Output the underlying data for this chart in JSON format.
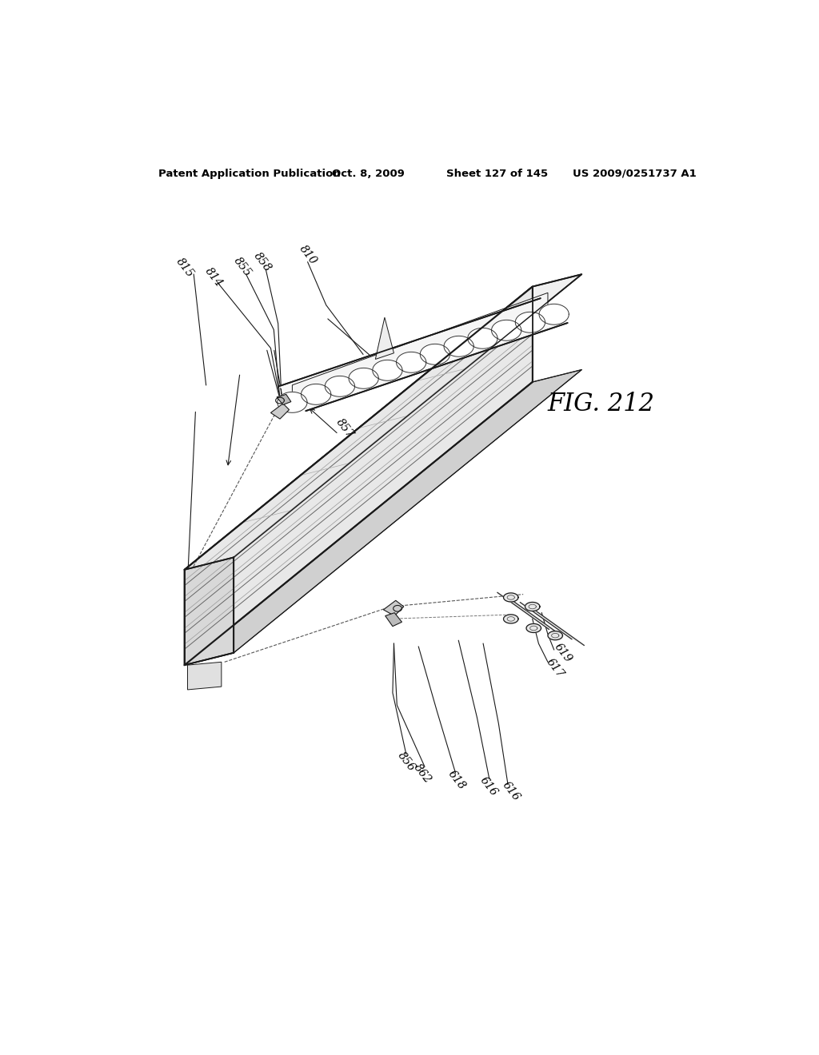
{
  "title_left": "Patent Application Publication",
  "title_mid": "Oct. 8, 2009",
  "title_sheet": "Sheet 127 of 145",
  "title_right": "US 2009/0251737 A1",
  "fig_label": "FIG. 212",
  "background_color": "#ffffff",
  "line_color": "#1a1a1a",
  "lw_main": 1.3,
  "lw_thin": 0.7,
  "lw_extra": 0.5
}
